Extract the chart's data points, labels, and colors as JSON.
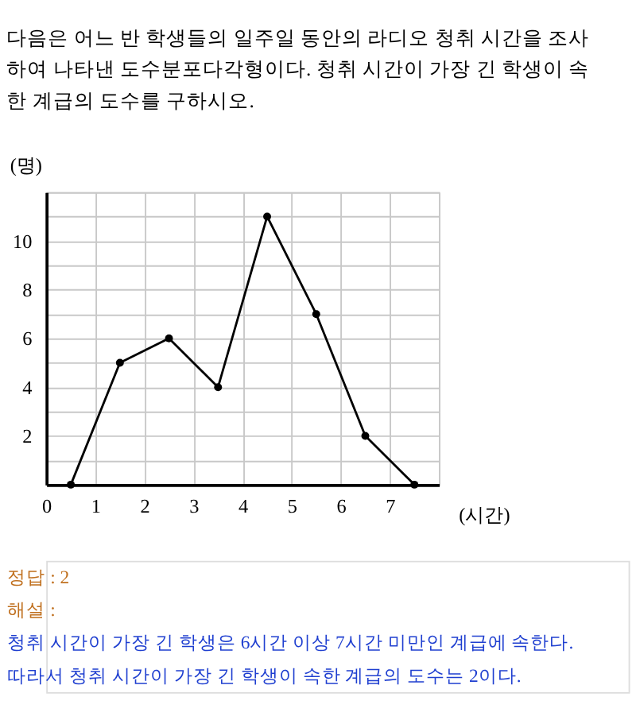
{
  "chart_data": {
    "type": "line",
    "title": "다음은 어느 반 학생들의 일주일 동안의 라디오 청취 시간을 조사하여 나타낸 도수분포다각형이다. 청취 시간이 가장 긴 학생이 속한 계급의 도수를 구하시오.",
    "xlabel": "(시간)",
    "ylabel": "(명)",
    "x": [
      0.5,
      1.5,
      2.5,
      3.5,
      4.5,
      5.5,
      6.5,
      7.5
    ],
    "series": [
      {
        "color": "#000000",
        "values": [
          0,
          5,
          6,
          4,
          11,
          7,
          2,
          0
        ]
      }
    ],
    "xlim": [
      0,
      8
    ],
    "ylim": [
      0,
      12
    ],
    "xticks": [
      0,
      1,
      2,
      3,
      4,
      5,
      6,
      7,
      {
        "value": 8,
        "label": null
      }
    ],
    "yticks": [
      {
        "value": 1,
        "label": null
      },
      2,
      {
        "value": 3,
        "label": null
      },
      4,
      {
        "value": 5,
        "label": null
      },
      6,
      {
        "value": 7,
        "label": null
      },
      8,
      {
        "value": 9,
        "label": null
      },
      10,
      {
        "value": 11,
        "label": null
      },
      {
        "value": 12,
        "label": null
      }
    ],
    "grid": true,
    "marker": "circle",
    "line_style": "solid",
    "annotations": [
      "정답 : 2",
      "해설 :",
      "청취 시간이 가장 긴 학생은 6시간 이상 7시간 미만인 계급에 속한다.",
      "따라서 청취 시간이 가장 긴 학생이 속한 계급의 도수는 2이다."
    ]
  }
}
